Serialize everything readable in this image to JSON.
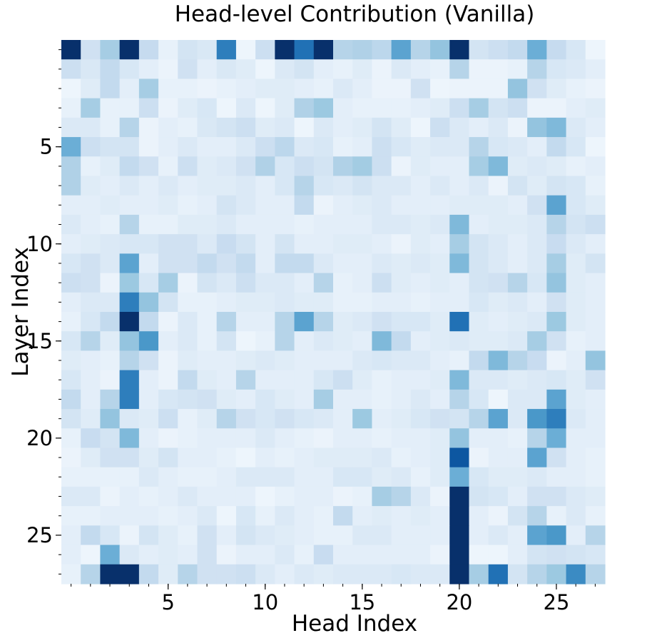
{
  "chart_data": {
    "type": "heatmap",
    "title": "Head-level Contribution (Vanilla)",
    "xlabel": "Head Index",
    "ylabel": "Layer Index",
    "colormap": "Blues",
    "value_range": [
      0,
      1
    ],
    "x_categories": [
      0,
      1,
      2,
      3,
      4,
      5,
      6,
      7,
      8,
      9,
      10,
      11,
      12,
      13,
      14,
      15,
      16,
      17,
      18,
      19,
      20,
      21,
      22,
      23,
      24,
      25,
      26,
      27
    ],
    "y_categories": [
      0,
      1,
      2,
      3,
      4,
      5,
      6,
      7,
      8,
      9,
      10,
      11,
      12,
      13,
      14,
      15,
      16,
      17,
      18,
      19,
      20,
      21,
      22,
      23,
      24,
      25,
      26,
      27
    ],
    "x_ticks": [
      5,
      10,
      15,
      20,
      25
    ],
    "y_ticks": [
      5,
      10,
      15,
      20,
      25
    ],
    "grid": false,
    "legend": "none",
    "values": [
      [
        1.0,
        0.2,
        0.35,
        1.0,
        0.25,
        0.08,
        0.18,
        0.15,
        0.7,
        0.05,
        0.22,
        1.0,
        0.75,
        1.0,
        0.3,
        0.32,
        0.28,
        0.55,
        0.3,
        0.4,
        1.0,
        0.18,
        0.22,
        0.26,
        0.5,
        0.25,
        0.16,
        0.05
      ],
      [
        0.22,
        0.15,
        0.26,
        0.16,
        0.1,
        0.06,
        0.2,
        0.1,
        0.15,
        0.12,
        0.05,
        0.14,
        0.18,
        0.1,
        0.08,
        0.12,
        0.06,
        0.14,
        0.1,
        0.08,
        0.3,
        0.06,
        0.06,
        0.08,
        0.3,
        0.16,
        0.14,
        0.1
      ],
      [
        0.05,
        0.12,
        0.26,
        0.1,
        0.35,
        0.08,
        0.08,
        0.06,
        0.08,
        0.1,
        0.12,
        0.12,
        0.1,
        0.08,
        0.14,
        0.1,
        0.06,
        0.06,
        0.2,
        0.05,
        0.06,
        0.06,
        0.06,
        0.4,
        0.2,
        0.12,
        0.08,
        0.06
      ],
      [
        0.08,
        0.35,
        0.08,
        0.08,
        0.22,
        0.06,
        0.12,
        0.16,
        0.05,
        0.14,
        0.05,
        0.12,
        0.32,
        0.38,
        0.1,
        0.08,
        0.08,
        0.08,
        0.1,
        0.12,
        0.22,
        0.35,
        0.18,
        0.22,
        0.06,
        0.06,
        0.1,
        0.12
      ],
      [
        0.14,
        0.14,
        0.08,
        0.3,
        0.06,
        0.1,
        0.08,
        0.15,
        0.18,
        0.22,
        0.12,
        0.14,
        0.05,
        0.14,
        0.1,
        0.12,
        0.18,
        0.12,
        0.05,
        0.22,
        0.14,
        0.1,
        0.14,
        0.06,
        0.4,
        0.45,
        0.14,
        0.1
      ],
      [
        0.5,
        0.22,
        0.18,
        0.18,
        0.06,
        0.1,
        0.14,
        0.1,
        0.1,
        0.14,
        0.22,
        0.28,
        0.14,
        0.16,
        0.08,
        0.1,
        0.22,
        0.16,
        0.12,
        0.14,
        0.14,
        0.3,
        0.16,
        0.14,
        0.1,
        0.26,
        0.16,
        0.05
      ],
      [
        0.32,
        0.08,
        0.12,
        0.26,
        0.2,
        0.08,
        0.22,
        0.12,
        0.14,
        0.2,
        0.32,
        0.16,
        0.22,
        0.18,
        0.32,
        0.36,
        0.22,
        0.06,
        0.12,
        0.1,
        0.1,
        0.35,
        0.45,
        0.12,
        0.14,
        0.12,
        0.08,
        0.1
      ],
      [
        0.32,
        0.12,
        0.1,
        0.14,
        0.1,
        0.14,
        0.1,
        0.12,
        0.12,
        0.14,
        0.1,
        0.16,
        0.3,
        0.16,
        0.14,
        0.18,
        0.14,
        0.14,
        0.1,
        0.14,
        0.1,
        0.14,
        0.06,
        0.18,
        0.12,
        0.18,
        0.16,
        0.08
      ],
      [
        0.1,
        0.1,
        0.12,
        0.1,
        0.1,
        0.12,
        0.08,
        0.1,
        0.18,
        0.14,
        0.1,
        0.1,
        0.26,
        0.06,
        0.1,
        0.12,
        0.14,
        0.1,
        0.1,
        0.1,
        0.12,
        0.12,
        0.12,
        0.1,
        0.2,
        0.55,
        0.16,
        0.12
      ],
      [
        0.14,
        0.1,
        0.08,
        0.3,
        0.08,
        0.08,
        0.12,
        0.12,
        0.14,
        0.1,
        0.1,
        0.1,
        0.08,
        0.1,
        0.1,
        0.1,
        0.14,
        0.14,
        0.12,
        0.14,
        0.45,
        0.1,
        0.12,
        0.12,
        0.14,
        0.3,
        0.18,
        0.22
      ],
      [
        0.1,
        0.12,
        0.14,
        0.16,
        0.16,
        0.2,
        0.2,
        0.14,
        0.24,
        0.18,
        0.1,
        0.18,
        0.1,
        0.1,
        0.12,
        0.12,
        0.1,
        0.06,
        0.12,
        0.1,
        0.35,
        0.18,
        0.14,
        0.1,
        0.14,
        0.24,
        0.14,
        0.1
      ],
      [
        0.16,
        0.2,
        0.14,
        0.55,
        0.1,
        0.2,
        0.2,
        0.26,
        0.2,
        0.26,
        0.1,
        0.26,
        0.26,
        0.14,
        0.1,
        0.1,
        0.14,
        0.12,
        0.14,
        0.12,
        0.45,
        0.18,
        0.14,
        0.1,
        0.14,
        0.35,
        0.12,
        0.18
      ],
      [
        0.22,
        0.2,
        0.06,
        0.38,
        0.16,
        0.35,
        0.06,
        0.18,
        0.14,
        0.22,
        0.14,
        0.14,
        0.1,
        0.3,
        0.08,
        0.1,
        0.22,
        0.12,
        0.1,
        0.12,
        0.1,
        0.18,
        0.2,
        0.3,
        0.16,
        0.4,
        0.12,
        0.1
      ],
      [
        0.1,
        0.14,
        0.14,
        0.7,
        0.4,
        0.18,
        0.08,
        0.08,
        0.1,
        0.12,
        0.12,
        0.14,
        0.12,
        0.12,
        0.08,
        0.08,
        0.1,
        0.1,
        0.08,
        0.1,
        0.1,
        0.16,
        0.12,
        0.14,
        0.1,
        0.2,
        0.12,
        0.1
      ],
      [
        0.08,
        0.16,
        0.26,
        1.0,
        0.26,
        0.06,
        0.14,
        0.08,
        0.3,
        0.1,
        0.1,
        0.3,
        0.55,
        0.3,
        0.12,
        0.14,
        0.2,
        0.16,
        0.16,
        0.12,
        0.75,
        0.12,
        0.1,
        0.12,
        0.14,
        0.38,
        0.12,
        0.1
      ],
      [
        0.16,
        0.3,
        0.12,
        0.4,
        0.6,
        0.1,
        0.14,
        0.08,
        0.18,
        0.05,
        0.08,
        0.3,
        0.1,
        0.14,
        0.12,
        0.1,
        0.45,
        0.26,
        0.1,
        0.12,
        0.14,
        0.12,
        0.12,
        0.14,
        0.35,
        0.2,
        0.08,
        0.1
      ],
      [
        0.12,
        0.1,
        0.08,
        0.3,
        0.2,
        0.06,
        0.12,
        0.1,
        0.1,
        0.12,
        0.14,
        0.12,
        0.1,
        0.1,
        0.1,
        0.14,
        0.16,
        0.14,
        0.14,
        0.1,
        0.08,
        0.26,
        0.45,
        0.3,
        0.24,
        0.06,
        0.1,
        0.4
      ],
      [
        0.16,
        0.1,
        0.06,
        0.7,
        0.1,
        0.06,
        0.26,
        0.12,
        0.1,
        0.3,
        0.1,
        0.1,
        0.1,
        0.16,
        0.22,
        0.12,
        0.08,
        0.1,
        0.1,
        0.12,
        0.45,
        0.14,
        0.14,
        0.12,
        0.14,
        0.16,
        0.12,
        0.2
      ],
      [
        0.26,
        0.1,
        0.3,
        0.7,
        0.1,
        0.16,
        0.18,
        0.2,
        0.12,
        0.1,
        0.16,
        0.12,
        0.1,
        0.35,
        0.1,
        0.1,
        0.08,
        0.1,
        0.14,
        0.1,
        0.3,
        0.16,
        0.05,
        0.14,
        0.14,
        0.55,
        0.12,
        0.1
      ],
      [
        0.18,
        0.12,
        0.4,
        0.14,
        0.12,
        0.22,
        0.08,
        0.12,
        0.3,
        0.2,
        0.16,
        0.2,
        0.16,
        0.14,
        0.1,
        0.38,
        0.1,
        0.12,
        0.16,
        0.2,
        0.18,
        0.3,
        0.55,
        0.14,
        0.6,
        0.7,
        0.14,
        0.1
      ],
      [
        0.08,
        0.24,
        0.18,
        0.45,
        0.1,
        0.06,
        0.08,
        0.1,
        0.1,
        0.1,
        0.14,
        0.1,
        0.08,
        0.06,
        0.1,
        0.1,
        0.08,
        0.1,
        0.1,
        0.12,
        0.4,
        0.1,
        0.1,
        0.08,
        0.3,
        0.5,
        0.1,
        0.1
      ],
      [
        0.06,
        0.12,
        0.2,
        0.2,
        0.12,
        0.18,
        0.1,
        0.1,
        0.08,
        0.05,
        0.1,
        0.08,
        0.1,
        0.12,
        0.12,
        0.12,
        0.14,
        0.08,
        0.1,
        0.12,
        0.85,
        0.06,
        0.1,
        0.1,
        0.55,
        0.2,
        0.1,
        0.08
      ],
      [
        0.08,
        0.08,
        0.08,
        0.08,
        0.14,
        0.1,
        0.08,
        0.08,
        0.1,
        0.14,
        0.14,
        0.14,
        0.1,
        0.1,
        0.16,
        0.16,
        0.12,
        0.14,
        0.08,
        0.12,
        0.5,
        0.16,
        0.12,
        0.12,
        0.14,
        0.1,
        0.1,
        0.08
      ],
      [
        0.14,
        0.14,
        0.06,
        0.1,
        0.08,
        0.1,
        0.14,
        0.1,
        0.1,
        0.1,
        0.05,
        0.08,
        0.1,
        0.1,
        0.06,
        0.08,
        0.35,
        0.3,
        0.14,
        0.06,
        1.0,
        0.18,
        0.16,
        0.1,
        0.2,
        0.2,
        0.14,
        0.12
      ],
      [
        0.08,
        0.08,
        0.1,
        0.1,
        0.1,
        0.08,
        0.1,
        0.14,
        0.05,
        0.16,
        0.08,
        0.14,
        0.1,
        0.08,
        0.26,
        0.1,
        0.12,
        0.1,
        0.12,
        0.1,
        1.0,
        0.1,
        0.06,
        0.18,
        0.3,
        0.08,
        0.14,
        0.08
      ],
      [
        0.1,
        0.26,
        0.16,
        0.06,
        0.18,
        0.12,
        0.08,
        0.2,
        0.1,
        0.18,
        0.14,
        0.12,
        0.1,
        0.08,
        0.08,
        0.14,
        0.14,
        0.1,
        0.1,
        0.1,
        1.0,
        0.1,
        0.14,
        0.1,
        0.55,
        0.6,
        0.1,
        0.3
      ],
      [
        0.1,
        0.05,
        0.5,
        0.14,
        0.1,
        0.12,
        0.1,
        0.2,
        0.06,
        0.1,
        0.1,
        0.14,
        0.08,
        0.24,
        0.1,
        0.1,
        0.1,
        0.1,
        0.1,
        0.06,
        1.0,
        0.05,
        0.05,
        0.1,
        0.18,
        0.2,
        0.18,
        0.16
      ],
      [
        0.08,
        0.3,
        1.0,
        1.0,
        0.26,
        0.12,
        0.3,
        0.2,
        0.2,
        0.22,
        0.14,
        0.1,
        0.14,
        0.12,
        0.14,
        0.14,
        0.14,
        0.16,
        0.14,
        0.14,
        1.0,
        0.35,
        0.75,
        0.18,
        0.3,
        0.38,
        0.65,
        0.3
      ]
    ]
  }
}
